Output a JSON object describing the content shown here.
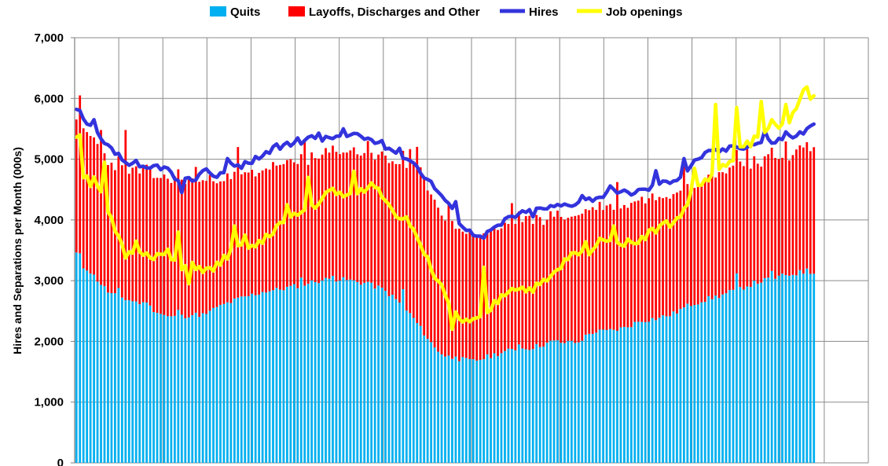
{
  "chart_data": {
    "type": "bar",
    "title": "",
    "xlabel": "",
    "ylabel": "Hires and Separations per Month (000s)",
    "ylim": [
      0,
      7000
    ],
    "yticks": [
      0,
      1000,
      2000,
      3000,
      4000,
      5000,
      6000,
      7000
    ],
    "ytick_labels": [
      "0",
      "1,000",
      "2,000",
      "3,000",
      "4,000",
      "5,000",
      "6,000",
      "7,000"
    ],
    "stacked": true,
    "grid": true,
    "legend_position": "top",
    "n_periods": 211,
    "n_slots": 226,
    "n_x_gridlines": 18,
    "series": [
      {
        "name": "Quits",
        "kind": "bar",
        "color": "#00B0F0",
        "anchors": [
          [
            0,
            3450
          ],
          [
            2,
            3230
          ],
          [
            4,
            3200
          ],
          [
            8,
            3000
          ],
          [
            12,
            2800
          ],
          [
            18,
            2700
          ],
          [
            26,
            2600
          ],
          [
            30,
            2480
          ],
          [
            34,
            2400
          ],
          [
            38,
            2400
          ],
          [
            42,
            2440
          ],
          [
            48,
            2440
          ],
          [
            54,
            2600
          ],
          [
            60,
            2700
          ],
          [
            66,
            2780
          ],
          [
            70,
            2830
          ],
          [
            74,
            2850
          ],
          [
            82,
            2920
          ],
          [
            88,
            2990
          ],
          [
            94,
            3030
          ],
          [
            100,
            3010
          ],
          [
            106,
            2960
          ],
          [
            112,
            2880
          ],
          [
            116,
            2760
          ],
          [
            120,
            2600
          ],
          [
            124,
            2400
          ],
          [
            128,
            2150
          ],
          [
            132,
            1900
          ],
          [
            136,
            1760
          ],
          [
            140,
            1720
          ],
          [
            146,
            1670
          ],
          [
            150,
            1720
          ],
          [
            156,
            1810
          ],
          [
            162,
            1870
          ],
          [
            168,
            1900
          ],
          [
            176,
            2000
          ],
          [
            184,
            1960
          ],
          [
            190,
            2150
          ],
          [
            196,
            2170
          ],
          [
            202,
            2220
          ],
          [
            208,
            2340
          ],
          [
            214,
            2380
          ],
          [
            220,
            2450
          ],
          [
            226,
            2600
          ],
          [
            232,
            2690
          ],
          [
            238,
            2760
          ],
          [
            244,
            2860
          ],
          [
            250,
            2960
          ],
          [
            256,
            3030
          ],
          [
            262,
            3090
          ],
          [
            266,
            3130
          ],
          [
            270,
            3150
          ]
        ],
        "spikes": {
          "1": 3450,
          "15": 2880,
          "26": 2640,
          "38": 2520,
          "50": 2550,
          "60": 2720,
          "83": 3050,
          "95": 3080,
          "107": 2980,
          "120": 2860,
          "140": 1750,
          "163": 1950,
          "183": 2010,
          "215": 2390,
          "244": 3120,
          "257": 3160,
          "269": 3200
        }
      },
      {
        "name": "Layoffs, Discharges and Other",
        "kind": "bar",
        "color": "#FF0000",
        "anchors": [
          [
            0,
            2250
          ],
          [
            4,
            2250
          ],
          [
            8,
            2260
          ],
          [
            14,
            2100
          ],
          [
            20,
            2150
          ],
          [
            26,
            2200
          ],
          [
            30,
            2250
          ],
          [
            36,
            2270
          ],
          [
            42,
            2230
          ],
          [
            48,
            2180
          ],
          [
            54,
            2080
          ],
          [
            60,
            2000
          ],
          [
            66,
            2010
          ],
          [
            72,
            2050
          ],
          [
            80,
            2020
          ],
          [
            88,
            2030
          ],
          [
            96,
            2100
          ],
          [
            104,
            2150
          ],
          [
            110,
            2170
          ],
          [
            116,
            2200
          ],
          [
            122,
            2350
          ],
          [
            126,
            2550
          ],
          [
            130,
            2500
          ],
          [
            134,
            2380
          ],
          [
            140,
            2150
          ],
          [
            146,
            2070
          ],
          [
            152,
            2050
          ],
          [
            158,
            2080
          ],
          [
            166,
            2150
          ],
          [
            172,
            2080
          ],
          [
            180,
            2060
          ],
          [
            186,
            2090
          ],
          [
            194,
            2040
          ],
          [
            202,
            2010
          ],
          [
            210,
            2020
          ],
          [
            218,
            2000
          ],
          [
            226,
            2000
          ],
          [
            232,
            1980
          ],
          [
            238,
            2030
          ],
          [
            244,
            2050
          ],
          [
            250,
            2010
          ],
          [
            256,
            1960
          ],
          [
            262,
            1940
          ],
          [
            266,
            2030
          ],
          [
            270,
            2050
          ]
        ],
        "spikes": {
          "1": 2600,
          "9": 2550,
          "18": 2800,
          "44": 2400,
          "60": 2480,
          "84": 2380,
          "108": 2320,
          "123": 2700,
          "126": 2900,
          "137": 2500,
          "161": 2400,
          "199": 2450,
          "224": 2350,
          "248": 2260,
          "262": 2200
        }
      },
      {
        "name": "Hires",
        "kind": "line",
        "color": "#3333DD",
        "anchors": [
          [
            0,
            5800
          ],
          [
            3,
            5580
          ],
          [
            6,
            5500
          ],
          [
            10,
            5250
          ],
          [
            14,
            5120
          ],
          [
            18,
            4950
          ],
          [
            22,
            4850
          ],
          [
            26,
            4830
          ],
          [
            30,
            4900
          ],
          [
            34,
            4820
          ],
          [
            38,
            4600
          ],
          [
            44,
            4700
          ],
          [
            48,
            4820
          ],
          [
            52,
            4700
          ],
          [
            56,
            4920
          ],
          [
            60,
            4880
          ],
          [
            64,
            4950
          ],
          [
            68,
            5060
          ],
          [
            72,
            5140
          ],
          [
            76,
            5220
          ],
          [
            80,
            5250
          ],
          [
            84,
            5320
          ],
          [
            88,
            5360
          ],
          [
            92,
            5330
          ],
          [
            96,
            5380
          ],
          [
            100,
            5370
          ],
          [
            104,
            5380
          ],
          [
            108,
            5330
          ],
          [
            112,
            5270
          ],
          [
            116,
            5170
          ],
          [
            120,
            5080
          ],
          [
            124,
            4960
          ],
          [
            128,
            4750
          ],
          [
            132,
            4550
          ],
          [
            136,
            4330
          ],
          [
            140,
            4050
          ],
          [
            144,
            3820
          ],
          [
            148,
            3770
          ],
          [
            152,
            3820
          ],
          [
            156,
            3880
          ],
          [
            160,
            4050
          ],
          [
            164,
            4100
          ],
          [
            168,
            4150
          ],
          [
            174,
            4200
          ],
          [
            180,
            4250
          ],
          [
            186,
            4300
          ],
          [
            192,
            4380
          ],
          [
            198,
            4450
          ],
          [
            204,
            4450
          ],
          [
            210,
            4500
          ],
          [
            216,
            4600
          ],
          [
            222,
            4700
          ],
          [
            226,
            4860
          ],
          [
            230,
            5050
          ],
          [
            234,
            5110
          ],
          [
            238,
            5150
          ],
          [
            242,
            5180
          ],
          [
            246,
            5220
          ],
          [
            250,
            5260
          ],
          [
            254,
            5300
          ],
          [
            258,
            5300
          ],
          [
            262,
            5380
          ],
          [
            266,
            5400
          ],
          [
            270,
            5500
          ],
          [
            272,
            5550
          ]
        ],
        "spikes": {
          "1": 5800,
          "6": 5650,
          "22": 4980,
          "39": 4450,
          "48": 4840,
          "56": 5010,
          "74": 5250,
          "82": 5350,
          "90": 5430,
          "98": 5500,
          "104": 5420,
          "119": 5180,
          "140": 4300,
          "150": 3700,
          "158": 4020,
          "168": 4050,
          "186": 4400,
          "197": 4560,
          "214": 4810,
          "224": 5010,
          "232": 5110,
          "242": 5220,
          "254": 5470,
          "262": 5450
        }
      },
      {
        "name": "Job openings",
        "kind": "line",
        "color": "#FFFF00",
        "anchors": [
          [
            0,
            5400
          ],
          [
            3,
            4650
          ],
          [
            6,
            4800
          ],
          [
            10,
            4300
          ],
          [
            14,
            3850
          ],
          [
            18,
            3400
          ],
          [
            22,
            3550
          ],
          [
            26,
            3450
          ],
          [
            30,
            3400
          ],
          [
            34,
            3450
          ],
          [
            38,
            3150
          ],
          [
            42,
            3300
          ],
          [
            46,
            3200
          ],
          [
            50,
            3150
          ],
          [
            54,
            3350
          ],
          [
            58,
            3500
          ],
          [
            62,
            3600
          ],
          [
            66,
            3550
          ],
          [
            70,
            3700
          ],
          [
            74,
            3900
          ],
          [
            78,
            4000
          ],
          [
            82,
            4100
          ],
          [
            86,
            4200
          ],
          [
            90,
            4300
          ],
          [
            94,
            4500
          ],
          [
            98,
            4400
          ],
          [
            102,
            4350
          ],
          [
            106,
            4500
          ],
          [
            110,
            4600
          ],
          [
            114,
            4350
          ],
          [
            118,
            4100
          ],
          [
            122,
            3900
          ],
          [
            126,
            3700
          ],
          [
            130,
            3300
          ],
          [
            134,
            2950
          ],
          [
            138,
            2500
          ],
          [
            142,
            2350
          ],
          [
            146,
            2300
          ],
          [
            150,
            2400
          ],
          [
            154,
            2600
          ],
          [
            158,
            2800
          ],
          [
            162,
            2900
          ],
          [
            166,
            2850
          ],
          [
            170,
            2900
          ],
          [
            174,
            3000
          ],
          [
            178,
            3200
          ],
          [
            182,
            3400
          ],
          [
            186,
            3450
          ],
          [
            190,
            3500
          ],
          [
            194,
            3700
          ],
          [
            198,
            3750
          ],
          [
            202,
            3600
          ],
          [
            206,
            3650
          ],
          [
            210,
            3750
          ],
          [
            214,
            3850
          ],
          [
            218,
            3930
          ],
          [
            222,
            4000
          ],
          [
            226,
            4350
          ],
          [
            228,
            4520
          ],
          [
            232,
            4650
          ],
          [
            236,
            4750
          ],
          [
            240,
            4920
          ],
          [
            244,
            5150
          ],
          [
            248,
            5250
          ],
          [
            252,
            5400
          ],
          [
            256,
            5500
          ],
          [
            260,
            5600
          ],
          [
            264,
            5700
          ],
          [
            266,
            5800
          ],
          [
            268,
            6100
          ],
          [
            272,
            6000
          ]
        ],
        "spikes": {
          "1": 5400,
          "5": 4550,
          "10": 4950,
          "22": 3650,
          "37": 3800,
          "41": 2950,
          "58": 3900,
          "62": 3750,
          "78": 4250,
          "86": 4700,
          "102": 4800,
          "122": 4050,
          "138": 2200,
          "150": 3220,
          "160": 2870,
          "188": 3640,
          "198": 3900,
          "216": 3950,
          "228": 4850,
          "236": 5900,
          "244": 5850,
          "252": 5950,
          "256": 5650,
          "262": 5900,
          "268": 6140,
          "270": 6190
        }
      }
    ]
  }
}
